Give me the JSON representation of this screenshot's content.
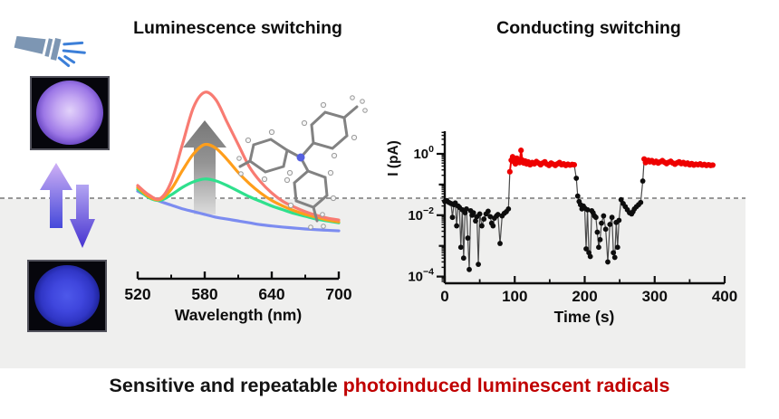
{
  "scene": {
    "background": "#ffffff",
    "panel_color": "#efefee",
    "dashed_color": "#979797"
  },
  "icons": {
    "flashlight": "flashlight-icon",
    "up_arrow": "up-transition-arrow-icon",
    "down_arrow": "down-transition-arrow-icon",
    "molecule": "tri-p-tolylamine-molecule-icon",
    "intensity_arrow": "intensity-increase-arrow-icon",
    "photo_top": "uv-on-purple-sample-photo",
    "photo_bottom": "uv-off-blue-sample-photo"
  },
  "luminescence": {
    "title": "Luminescence switching"
  },
  "conducting": {
    "title": "Conducting switching"
  },
  "caption": {
    "black_text": "Sensitive and repeatable ",
    "red_text": "photoinduced luminescent radicals",
    "red_color": "#c00000"
  },
  "chart_data": [
    {
      "type": "line",
      "name": "luminescence-spectra",
      "xlabel": "Wavelength (nm)",
      "xlim": [
        520,
        700
      ],
      "x_ticks": [
        520,
        580,
        640,
        700
      ],
      "x_minor_ticks": [
        550,
        610,
        670
      ],
      "ylim": [
        0,
        1.1
      ],
      "grid": false,
      "legend": "none",
      "x": [
        520,
        530,
        540,
        550,
        560,
        570,
        580,
        590,
        600,
        610,
        620,
        630,
        640,
        650,
        660,
        670,
        680,
        690,
        700
      ],
      "series": [
        {
          "name": "intensity-high",
          "color": "#f87b72",
          "values": [
            0.5,
            0.45,
            0.43,
            0.52,
            0.72,
            0.92,
            1.0,
            0.96,
            0.84,
            0.72,
            0.6,
            0.52,
            0.46,
            0.415,
            0.385,
            0.36,
            0.34,
            0.325,
            0.315
          ]
        },
        {
          "name": "intensity-mid",
          "color": "#ff9e1b",
          "values": [
            0.49,
            0.44,
            0.425,
            0.48,
            0.58,
            0.67,
            0.72,
            0.7,
            0.64,
            0.57,
            0.51,
            0.46,
            0.42,
            0.39,
            0.365,
            0.345,
            0.33,
            0.315,
            0.305
          ]
        },
        {
          "name": "intensity-low",
          "color": "#2fe08d",
          "values": [
            0.48,
            0.435,
            0.42,
            0.45,
            0.49,
            0.52,
            0.535,
            0.525,
            0.5,
            0.47,
            0.44,
            0.415,
            0.39,
            0.37,
            0.35,
            0.335,
            0.32,
            0.31,
            0.3
          ]
        },
        {
          "name": "quenched",
          "color": "#7c8cf0",
          "values": [
            0.47,
            0.44,
            0.415,
            0.395,
            0.375,
            0.36,
            0.345,
            0.33,
            0.32,
            0.31,
            0.3,
            0.29,
            0.283,
            0.277,
            0.272,
            0.267,
            0.263,
            0.26,
            0.257
          ]
        }
      ],
      "annotations": [
        "gray upward arrow indicating intensity increase",
        "tri-p-tolylamine molecular structure"
      ]
    },
    {
      "type": "scatter",
      "name": "current-switching",
      "xlabel": "Time (s)",
      "ylabel": "I (pA)",
      "xlim": [
        0,
        400
      ],
      "x_ticks": [
        0,
        100,
        200,
        300,
        400
      ],
      "x_minor_ticks": [
        50,
        150,
        250,
        350
      ],
      "y_scale": "log",
      "y_tick_exponents": [
        0,
        -2,
        -4
      ],
      "ylim_log_exponents": [
        -4.2,
        0.75
      ],
      "grid": false,
      "state_colors": {
        "off": "#0d0d0d",
        "on": "#ee0000"
      },
      "points": [
        [
          0,
          0.028,
          "off"
        ],
        [
          3,
          0.03,
          "off"
        ],
        [
          6,
          0.026,
          "off"
        ],
        [
          9,
          0.024,
          "off"
        ],
        [
          11,
          0.0085,
          "off"
        ],
        [
          13,
          0.022,
          "off"
        ],
        [
          15,
          0.025,
          "off"
        ],
        [
          17,
          0.0045,
          "off"
        ],
        [
          19,
          0.02,
          "off"
        ],
        [
          21,
          0.018,
          "off"
        ],
        [
          23,
          0.0009,
          "off"
        ],
        [
          25,
          0.015,
          "off"
        ],
        [
          27,
          0.0004,
          "off"
        ],
        [
          29,
          0.012,
          "off"
        ],
        [
          31,
          0.016,
          "off"
        ],
        [
          33,
          0.0018,
          "off"
        ],
        [
          35,
          0.00017,
          "off"
        ],
        [
          37,
          0.014,
          "off"
        ],
        [
          39,
          0.01,
          "off"
        ],
        [
          41,
          0.012,
          "off"
        ],
        [
          44,
          0.0065,
          "off"
        ],
        [
          46,
          0.009,
          "off"
        ],
        [
          48,
          0.00025,
          "off"
        ],
        [
          50,
          0.011,
          "off"
        ],
        [
          53,
          0.0045,
          "off"
        ],
        [
          56,
          0.0075,
          "off"
        ],
        [
          59,
          0.011,
          "off"
        ],
        [
          62,
          0.0135,
          "off"
        ],
        [
          65,
          0.009,
          "off"
        ],
        [
          67,
          0.0055,
          "off"
        ],
        [
          69,
          0.0045,
          "off"
        ],
        [
          71,
          0.008,
          "off"
        ],
        [
          74,
          0.0095,
          "off"
        ],
        [
          76,
          0.0105,
          "off"
        ],
        [
          79,
          0.0012,
          "off"
        ],
        [
          82,
          0.0095,
          "off"
        ],
        [
          85,
          0.0115,
          "off"
        ],
        [
          88,
          0.013,
          "off"
        ],
        [
          91,
          0.016,
          "off"
        ],
        [
          93,
          0.26,
          "on"
        ],
        [
          95,
          0.62,
          "on"
        ],
        [
          97,
          0.8,
          "on"
        ],
        [
          99,
          0.55,
          "on"
        ],
        [
          101,
          0.47,
          "on"
        ],
        [
          103,
          0.72,
          "on"
        ],
        [
          105,
          0.6,
          "on"
        ],
        [
          107,
          0.52,
          "on"
        ],
        [
          109,
          1.3,
          "on"
        ],
        [
          111,
          0.62,
          "on"
        ],
        [
          113,
          0.5,
          "on"
        ],
        [
          115,
          0.58,
          "on"
        ],
        [
          117,
          0.47,
          "on"
        ],
        [
          119,
          0.55,
          "on"
        ],
        [
          122,
          0.44,
          "on"
        ],
        [
          125,
          0.52,
          "on"
        ],
        [
          128,
          0.47,
          "on"
        ],
        [
          131,
          0.56,
          "on"
        ],
        [
          134,
          0.5,
          "on"
        ],
        [
          137,
          0.44,
          "on"
        ],
        [
          140,
          0.5,
          "on"
        ],
        [
          143,
          0.55,
          "on"
        ],
        [
          146,
          0.46,
          "on"
        ],
        [
          149,
          0.42,
          "on"
        ],
        [
          152,
          0.5,
          "on"
        ],
        [
          155,
          0.46,
          "on"
        ],
        [
          158,
          0.42,
          "on"
        ],
        [
          161,
          0.47,
          "on"
        ],
        [
          164,
          0.52,
          "on"
        ],
        [
          167,
          0.44,
          "on"
        ],
        [
          170,
          0.47,
          "on"
        ],
        [
          173,
          0.42,
          "on"
        ],
        [
          176,
          0.46,
          "on"
        ],
        [
          179,
          0.43,
          "on"
        ],
        [
          182,
          0.45,
          "on"
        ],
        [
          185,
          0.44,
          "on"
        ],
        [
          188,
          0.16,
          "off"
        ],
        [
          190,
          0.042,
          "off"
        ],
        [
          192,
          0.028,
          "off"
        ],
        [
          194,
          0.022,
          "off"
        ],
        [
          196,
          0.016,
          "off"
        ],
        [
          198,
          0.02,
          "off"
        ],
        [
          200,
          0.017,
          "off"
        ],
        [
          202,
          0.0008,
          "off"
        ],
        [
          204,
          0.015,
          "off"
        ],
        [
          206,
          0.0006,
          "off"
        ],
        [
          208,
          0.00045,
          "off"
        ],
        [
          210,
          0.014,
          "off"
        ],
        [
          212,
          0.012,
          "off"
        ],
        [
          214,
          0.0095,
          "off"
        ],
        [
          216,
          0.0085,
          "off"
        ],
        [
          218,
          0.0028,
          "off"
        ],
        [
          220,
          0.0009,
          "off"
        ],
        [
          222,
          0.0016,
          "off"
        ],
        [
          224,
          0.0055,
          "off"
        ],
        [
          227,
          0.0095,
          "off"
        ],
        [
          230,
          0.0035,
          "off"
        ],
        [
          233,
          0.0003,
          "off"
        ],
        [
          236,
          0.005,
          "off"
        ],
        [
          239,
          0.0085,
          "off"
        ],
        [
          241,
          0.0006,
          "off"
        ],
        [
          243,
          0.00042,
          "off"
        ],
        [
          245,
          0.0058,
          "off"
        ],
        [
          247,
          0.0009,
          "off"
        ],
        [
          249,
          0.0068,
          "off"
        ],
        [
          252,
          0.032,
          "off"
        ],
        [
          255,
          0.024,
          "off"
        ],
        [
          258,
          0.019,
          "off"
        ],
        [
          261,
          0.015,
          "off"
        ],
        [
          264,
          0.012,
          "off"
        ],
        [
          267,
          0.011,
          "off"
        ],
        [
          269,
          0.013,
          "off"
        ],
        [
          271,
          0.016,
          "off"
        ],
        [
          274,
          0.019,
          "off"
        ],
        [
          277,
          0.022,
          "off"
        ],
        [
          280,
          0.026,
          "off"
        ],
        [
          283,
          0.13,
          "off"
        ],
        [
          285,
          0.68,
          "on"
        ],
        [
          287,
          0.52,
          "on"
        ],
        [
          289,
          0.58,
          "on"
        ],
        [
          291,
          0.62,
          "on"
        ],
        [
          293,
          0.55,
          "on"
        ],
        [
          296,
          0.6,
          "on"
        ],
        [
          299,
          0.52,
          "on"
        ],
        [
          302,
          0.57,
          "on"
        ],
        [
          305,
          0.5,
          "on"
        ],
        [
          308,
          0.55,
          "on"
        ],
        [
          311,
          0.6,
          "on"
        ],
        [
          314,
          0.53,
          "on"
        ],
        [
          317,
          0.48,
          "on"
        ],
        [
          320,
          0.53,
          "on"
        ],
        [
          323,
          0.57,
          "on"
        ],
        [
          326,
          0.5,
          "on"
        ],
        [
          329,
          0.46,
          "on"
        ],
        [
          332,
          0.51,
          "on"
        ],
        [
          335,
          0.55,
          "on"
        ],
        [
          338,
          0.48,
          "on"
        ],
        [
          341,
          0.52,
          "on"
        ],
        [
          344,
          0.46,
          "on"
        ],
        [
          347,
          0.5,
          "on"
        ],
        [
          350,
          0.44,
          "on"
        ],
        [
          353,
          0.48,
          "on"
        ],
        [
          356,
          0.43,
          "on"
        ],
        [
          359,
          0.46,
          "on"
        ],
        [
          362,
          0.44,
          "on"
        ],
        [
          365,
          0.47,
          "on"
        ],
        [
          368,
          0.43,
          "on"
        ],
        [
          371,
          0.45,
          "on"
        ],
        [
          374,
          0.42,
          "on"
        ],
        [
          377,
          0.44,
          "on"
        ],
        [
          380,
          0.42,
          "on"
        ],
        [
          383,
          0.43,
          "on"
        ]
      ]
    }
  ]
}
